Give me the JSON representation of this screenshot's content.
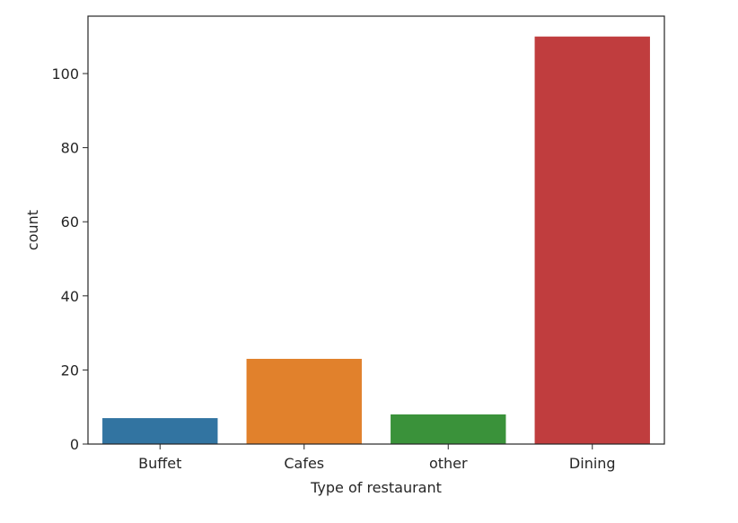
{
  "chart_data": {
    "type": "bar",
    "title": "",
    "xlabel": "Type of restaurant",
    "ylabel": "count",
    "categories": [
      "Buffet",
      "Cafes",
      "other",
      "Dining"
    ],
    "values": [
      7,
      23,
      8,
      110
    ],
    "colors": [
      "#3274a1",
      "#e1812c",
      "#3a923a",
      "#c03d3e"
    ],
    "ylim": [
      0,
      115.5
    ],
    "yticks": [
      0,
      20,
      40,
      60,
      80,
      100
    ],
    "grid": false,
    "legend": "none"
  }
}
